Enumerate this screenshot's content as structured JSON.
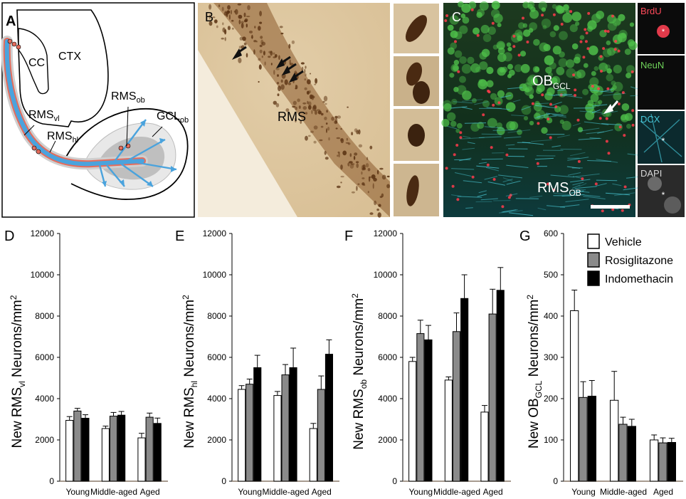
{
  "panels": {
    "A": {
      "letter": "A",
      "labels": {
        "cc": "CC",
        "ctx": "CTX",
        "rms_ob_main": "RMS",
        "rms_ob_sub": "ob",
        "gcl_ob_main": "GCL",
        "gcl_ob_sub": "ob",
        "rms_vl_main": "RMS",
        "rms_vl_sub": "vl",
        "rms_hl_main": "RMS",
        "rms_hl_sub": "hl"
      }
    },
    "B": {
      "letter": "B",
      "label": "RMS"
    },
    "C": {
      "letter": "C",
      "ob_main": "OB",
      "ob_sub": "GCL",
      "rms_main": "RMS",
      "rms_sub": "OB",
      "channels": [
        "BrdU",
        "NeuN",
        "DCX",
        "DAPI"
      ],
      "channel_colors": [
        "#ff4a5a",
        "#6fd35a",
        "#47c7d8",
        "#d8d8d8"
      ]
    }
  },
  "legend": {
    "items": [
      "Vehicle",
      "Rosiglitazone",
      "Indomethacin"
    ],
    "colors": [
      "#ffffff",
      "#8a8a8a",
      "#000000"
    ]
  },
  "chart_data": [
    {
      "type": "bar",
      "panel": "D",
      "ylabel_pre": "New RMS",
      "ylabel_sub": "vl",
      "ylabel_post": " Neurons/mm",
      "ylabel_sup": "2",
      "categories": [
        "Young",
        "Middle-aged",
        "Aged"
      ],
      "ylim": [
        0,
        12000
      ],
      "yticks": [
        0,
        2000,
        4000,
        6000,
        8000,
        10000,
        12000
      ],
      "series": [
        {
          "name": "Vehicle",
          "values": [
            2950,
            2550,
            2100
          ],
          "errors": [
            180,
            120,
            220
          ]
        },
        {
          "name": "Rosiglitazone",
          "values": [
            3400,
            3150,
            3100
          ],
          "errors": [
            130,
            180,
            200
          ]
        },
        {
          "name": "Indomethacin",
          "values": [
            3050,
            3200,
            2800
          ],
          "errors": [
            170,
            180,
            260
          ]
        }
      ]
    },
    {
      "type": "bar",
      "panel": "E",
      "ylabel_pre": "New RMS",
      "ylabel_sub": "hl",
      "ylabel_post": " Neurons/mm",
      "ylabel_sup": "2",
      "categories": [
        "Young",
        "Middle-aged",
        "Aged"
      ],
      "ylim": [
        0,
        12000
      ],
      "yticks": [
        0,
        2000,
        4000,
        6000,
        8000,
        10000,
        12000
      ],
      "series": [
        {
          "name": "Vehicle",
          "values": [
            4450,
            4150,
            2550
          ],
          "errors": [
            180,
            200,
            250
          ]
        },
        {
          "name": "Rosiglitazone",
          "values": [
            4700,
            5150,
            4450
          ],
          "errors": [
            250,
            500,
            650
          ]
        },
        {
          "name": "Indomethacin",
          "values": [
            5500,
            5500,
            6150
          ],
          "errors": [
            600,
            950,
            700
          ]
        }
      ]
    },
    {
      "type": "bar",
      "panel": "F",
      "ylabel_pre": "New RMS",
      "ylabel_sub": "ob",
      "ylabel_post": " Neurons/mm",
      "ylabel_sup": "2",
      "categories": [
        "Young",
        "Middle-aged",
        "Aged"
      ],
      "ylim": [
        0,
        12000
      ],
      "yticks": [
        0,
        2000,
        4000,
        6000,
        8000,
        10000,
        12000
      ],
      "series": [
        {
          "name": "Vehicle",
          "values": [
            5800,
            4900,
            3350
          ],
          "errors": [
            200,
            150,
            320
          ]
        },
        {
          "name": "Rosiglitazone",
          "values": [
            7150,
            7250,
            8100
          ],
          "errors": [
            650,
            900,
            1200
          ]
        },
        {
          "name": "Indomethacin",
          "values": [
            6850,
            8850,
            9250
          ],
          "errors": [
            700,
            1150,
            1100
          ]
        }
      ]
    },
    {
      "type": "bar",
      "panel": "G",
      "ylabel_pre": "New OB",
      "ylabel_sub": "GCL",
      "ylabel_post": " Neurons/mm",
      "ylabel_sup": "2",
      "categories": [
        "Young",
        "Middle-aged",
        "Aged"
      ],
      "ylim": [
        0,
        600
      ],
      "yticks": [
        0,
        100,
        200,
        300,
        400,
        500,
        600
      ],
      "series": [
        {
          "name": "Vehicle",
          "values": [
            413,
            196,
            100
          ],
          "errors": [
            50,
            70,
            12
          ]
        },
        {
          "name": "Rosiglitazone",
          "values": [
            203,
            138,
            93
          ],
          "errors": [
            38,
            17,
            12
          ]
        },
        {
          "name": "Indomethacin",
          "values": [
            206,
            133,
            94
          ],
          "errors": [
            38,
            17,
            10
          ]
        }
      ]
    }
  ]
}
